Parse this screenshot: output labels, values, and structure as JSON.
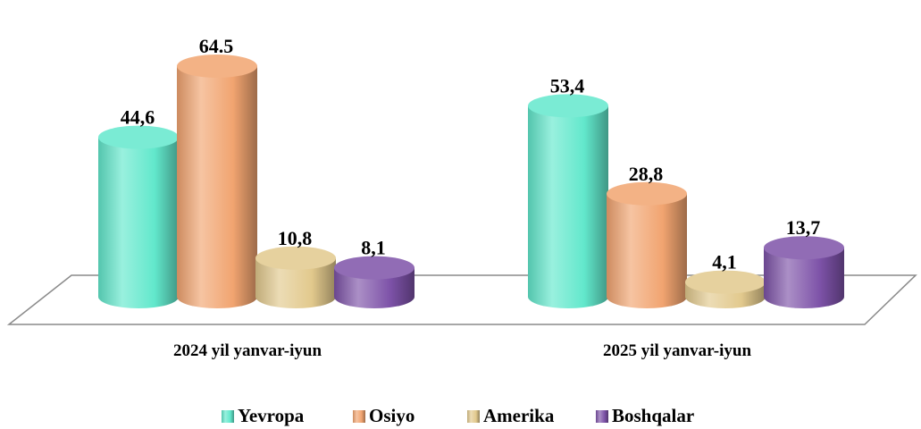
{
  "chart_data": {
    "type": "bar",
    "style": "3d-cylinder",
    "categories": [
      "2024 yil yanvar-iyun",
      "2025 yil yanvar-iyun"
    ],
    "series": [
      {
        "name": "Yevropa",
        "values": [
          44.6,
          53.4
        ],
        "labels": [
          "44,6",
          "53,4"
        ],
        "color": "#62e8cc"
      },
      {
        "name": "Osiyo",
        "values": [
          64.5,
          28.8
        ],
        "labels": [
          "64.5",
          "28,8"
        ],
        "color": "#f1a470"
      },
      {
        "name": "Amerika",
        "values": [
          10.8,
          4.1
        ],
        "labels": [
          "10,8",
          "4,1"
        ],
        "color": "#e2c98d"
      },
      {
        "name": "Boshqalar",
        "values": [
          8.1,
          13.7
        ],
        "labels": [
          "8,1",
          "13,7"
        ],
        "color": "#7d52a8"
      }
    ],
    "legend": "bottom",
    "grid": false
  }
}
